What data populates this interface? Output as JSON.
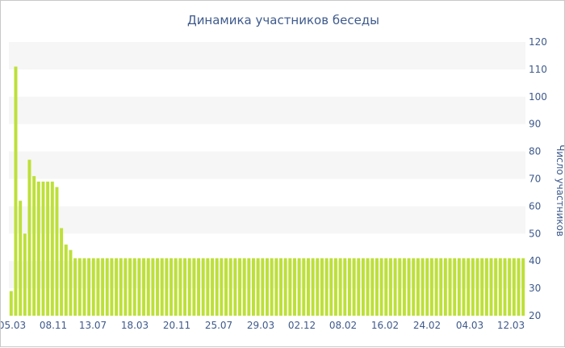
{
  "chart_data": {
    "type": "bar",
    "title": "Динамика участников беседы",
    "xlabel": "",
    "ylabel": "Число участников",
    "ylim": [
      20,
      120
    ],
    "yticks": [
      20,
      30,
      40,
      50,
      60,
      70,
      80,
      90,
      100,
      110,
      120
    ],
    "y_axis_position": "right",
    "grid": "alternating horizontal bands",
    "bar_color": "#bde038",
    "band_color": "#f6f6f6",
    "text_color": "#3e5a8c",
    "x_tick_labels": [
      "05.03",
      "08.11",
      "13.07",
      "18.03",
      "20.11",
      "25.07",
      "29.03",
      "02.12",
      "08.02",
      "16.02",
      "24.02",
      "04.03",
      "12.03"
    ],
    "values": [
      29,
      111,
      62,
      50,
      77,
      71,
      69,
      69,
      69,
      69,
      67,
      52,
      46,
      44,
      41,
      41,
      41,
      41,
      41,
      41,
      41,
      41,
      41,
      41,
      41,
      41,
      41,
      41,
      41,
      41,
      41,
      41,
      41,
      41,
      41,
      41,
      41,
      41,
      41,
      41,
      41,
      41,
      41,
      41,
      41,
      41,
      41,
      41,
      41,
      41,
      41,
      41,
      41,
      41,
      41,
      41,
      41,
      41,
      41,
      41,
      41,
      41,
      41,
      41,
      41,
      41,
      41,
      41,
      41,
      41,
      41,
      41,
      41,
      41,
      41,
      41,
      41,
      41,
      41,
      41,
      41,
      41,
      41,
      41,
      41,
      41,
      41,
      41,
      41,
      41,
      41,
      41,
      41,
      41,
      41,
      41,
      41,
      41,
      41,
      41,
      41,
      41,
      41,
      41,
      41,
      41,
      41,
      41,
      41,
      41,
      41,
      41,
      41
    ]
  }
}
